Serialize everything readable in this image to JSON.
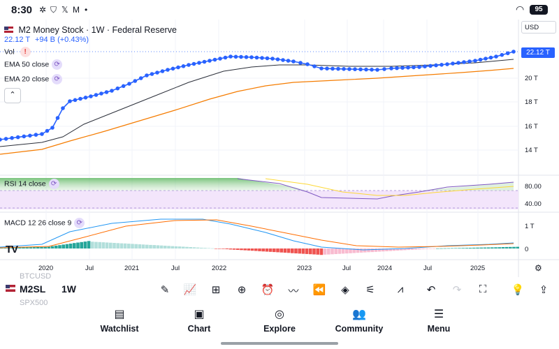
{
  "status_bar": {
    "time": "8:30",
    "battery": "95",
    "left_icons": [
      "pinwheel-icon",
      "shield-v-icon",
      "x-icon",
      "gmail-icon",
      "dot-icon"
    ],
    "right_icons": [
      "wifi-icon",
      "battery-icon"
    ]
  },
  "chart": {
    "title": "M2 Money Stock · 1W · Federal Reserve",
    "price": "22.12 T",
    "change": "+94 B (+0.43%)",
    "vol_label": "Vol",
    "ema50_label": "EMA 50 close",
    "ema20_label": "EMA 20 close",
    "rsi_label": "RSI 14 close",
    "macd_label": "MACD 12 26 close 9",
    "currency": "USD",
    "current_price_tag": "22.12 T",
    "y_ticks": [
      "20 T",
      "18 T",
      "16 T",
      "14 T"
    ],
    "rsi_ticks": [
      "80.00",
      "40.00"
    ],
    "macd_ticks": [
      "1 T",
      "0"
    ],
    "x_ticks": [
      "2020",
      "Jul",
      "2021",
      "Jul",
      "2022",
      "2023",
      "Jul",
      "2024",
      "Jul",
      "2025"
    ],
    "overlay_ghost": [
      "BTCUSD",
      "SPX500"
    ],
    "colors": {
      "price": "#2962ff",
      "ema50": "#2a2e39",
      "ema20": "#f57c00",
      "rsi": "#7e57c2",
      "macd": "#2196f3",
      "signal": "#ff6d00",
      "hist_pos": "#26a69a",
      "hist_neg": "#ef5350"
    }
  },
  "toolbar": {
    "symbol": "M2SL",
    "interval": "1W",
    "tools": [
      "brush-icon",
      "indicators-icon",
      "templates-icon",
      "add-icon",
      "alert-icon",
      "replay-icon",
      "rewind-icon",
      "layers-icon",
      "settings-icon",
      "drawings-icon",
      "undo-icon",
      "redo-icon",
      "fullscreen-icon",
      "bulb-icon",
      "share-icon"
    ]
  },
  "bottom_nav": {
    "items": [
      {
        "label": "Watchlist",
        "icon": "watchlist-icon"
      },
      {
        "label": "Chart",
        "icon": "chart-icon"
      },
      {
        "label": "Explore",
        "icon": "compass-icon"
      },
      {
        "label": "Community",
        "icon": "community-icon"
      },
      {
        "label": "Menu",
        "icon": "menu-icon"
      }
    ]
  }
}
